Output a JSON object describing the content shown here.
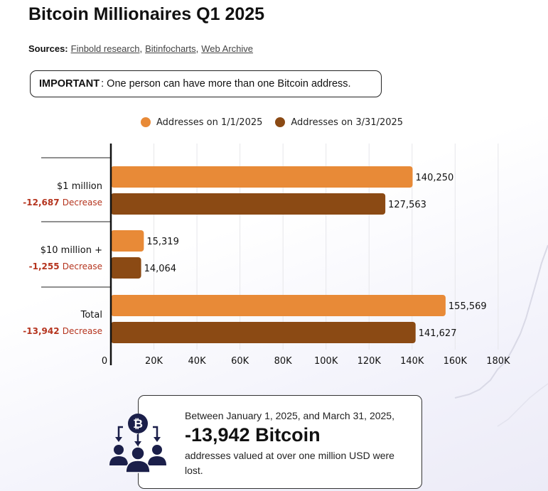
{
  "title": "Bitcoin Millionaires Q1 2025",
  "sources": {
    "label": "Sources:",
    "links": [
      "Finbold research",
      "Bitinfocharts",
      "Web Archive"
    ]
  },
  "important": {
    "label": "IMPORTANT",
    "text": ": One person can have more than one Bitcoin address."
  },
  "colors": {
    "series1": "#E88A37",
    "series2": "#8B4A14",
    "decrease": "#B5341E"
  },
  "chart_data": {
    "type": "bar",
    "orientation": "horizontal",
    "categories": [
      "$1 million",
      "$10 million +",
      "Total"
    ],
    "changes": [
      {
        "value": "-12,687",
        "label": "Decrease"
      },
      {
        "value": "-1,255",
        "label": "Decrease"
      },
      {
        "value": "-13,942",
        "label": "Decrease"
      }
    ],
    "series": [
      {
        "name": "Addresses on 1/1/2025",
        "values": [
          140250,
          15319,
          155569
        ],
        "labels": [
          "140,250",
          "15,319",
          "155,569"
        ]
      },
      {
        "name": "Addresses on 3/31/2025",
        "values": [
          127563,
          14064,
          141627
        ],
        "labels": [
          "127,563",
          "14,064",
          "141,627"
        ]
      }
    ],
    "xlim": [
      0,
      180000
    ],
    "ticks": [
      0,
      20000,
      40000,
      60000,
      80000,
      100000,
      120000,
      140000,
      160000,
      180000
    ],
    "tick_labels": [
      "0",
      "20K",
      "40K",
      "60K",
      "80K",
      "100K",
      "120K",
      "140K",
      "160K",
      "180K"
    ],
    "legend": "top",
    "grid": true
  },
  "callout": {
    "line1": "Between January 1, 2025, and March 31, 2025,",
    "headline": "-13,942 Bitcoin",
    "line3": "addresses valued at over one million USD were lost."
  }
}
